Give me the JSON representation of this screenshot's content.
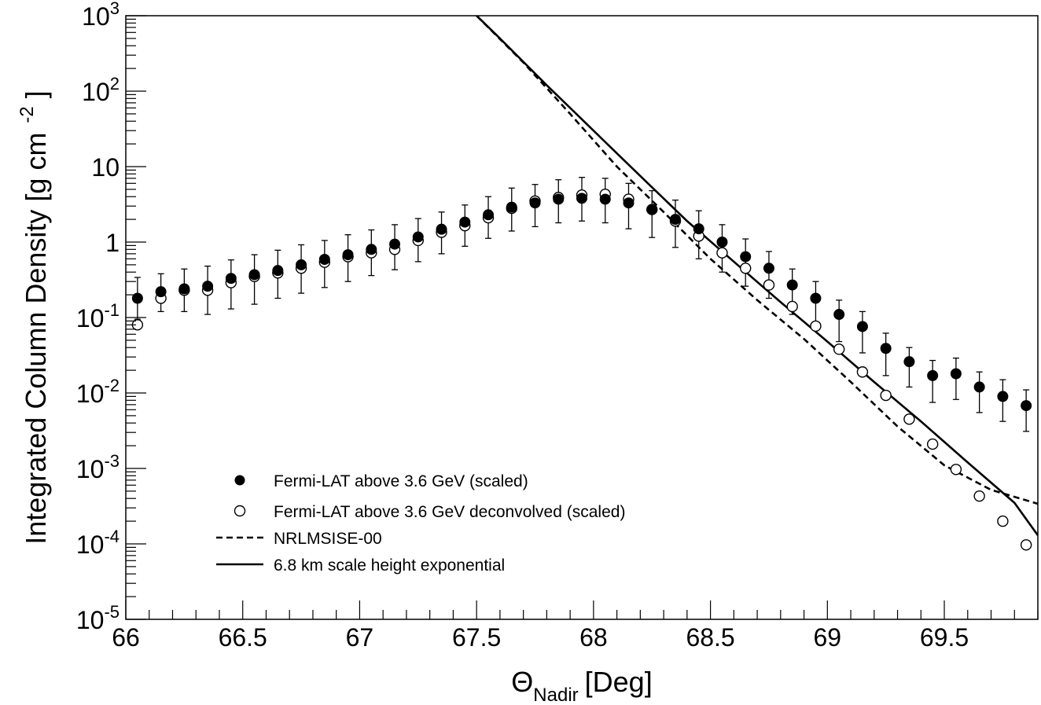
{
  "chart_data": {
    "type": "scatter",
    "title": "",
    "xlabel": "Θ",
    "xlabel_sub": "Nadir",
    "xlabel_unit": "[Deg]",
    "ylabel": "Integrated Column Density [g cm",
    "ylabel_sup": "-2",
    "ylabel_close": "]",
    "xlim": [
      66.0,
      69.9
    ],
    "ylim": [
      1e-05,
      1000
    ],
    "yscale": "log",
    "grid": false,
    "legend_position": "lower-left",
    "x_ticks": [
      66,
      66.5,
      67,
      67.5,
      68,
      68.5,
      69,
      69.5
    ],
    "x_tick_labels": [
      "66",
      "66.5",
      "67",
      "67.5",
      "68",
      "68.5",
      "69",
      "69.5"
    ],
    "y_ticks": [
      {
        "value": 1000,
        "mantissa": "10",
        "exp": "3"
      },
      {
        "value": 100,
        "mantissa": "10",
        "exp": "2"
      },
      {
        "value": 10,
        "mantissa": "10",
        "exp": ""
      },
      {
        "value": 1,
        "mantissa": "1",
        "exp": ""
      },
      {
        "value": 0.1,
        "mantissa": "10",
        "exp": "-1"
      },
      {
        "value": 0.01,
        "mantissa": "10",
        "exp": "-2"
      },
      {
        "value": 0.001,
        "mantissa": "10",
        "exp": "-3"
      },
      {
        "value": 0.0001,
        "mantissa": "10",
        "exp": "-4"
      },
      {
        "value": 1e-05,
        "mantissa": "10",
        "exp": "-5"
      }
    ],
    "series": [
      {
        "name": "Fermi-LAT above 3.6 GeV (scaled)",
        "marker": "filled-circle",
        "x": [
          66.05,
          66.15,
          66.25,
          66.35,
          66.45,
          66.55,
          66.65,
          66.75,
          66.85,
          66.95,
          67.05,
          67.15,
          67.25,
          67.35,
          67.45,
          67.55,
          67.65,
          67.75,
          67.85,
          67.95,
          68.05,
          68.15,
          68.25,
          68.35,
          68.45,
          68.55,
          68.65,
          68.75,
          68.85,
          68.95,
          69.05,
          69.15,
          69.25,
          69.35,
          69.45,
          69.55,
          69.65,
          69.75,
          69.85
        ],
        "y": [
          0.18,
          0.22,
          0.24,
          0.26,
          0.33,
          0.37,
          0.42,
          0.5,
          0.59,
          0.68,
          0.8,
          0.94,
          1.17,
          1.48,
          1.84,
          2.3,
          2.9,
          3.3,
          3.7,
          3.8,
          3.7,
          3.3,
          2.7,
          2.0,
          1.5,
          1.0,
          0.64,
          0.45,
          0.27,
          0.18,
          0.11,
          0.076,
          0.039,
          0.026,
          0.017,
          0.018,
          0.012,
          0.009,
          0.0068
        ],
        "y_low": [
          0.095,
          0.12,
          0.12,
          0.11,
          0.13,
          0.15,
          0.18,
          0.21,
          0.25,
          0.3,
          0.36,
          0.43,
          0.55,
          0.7,
          0.88,
          1.12,
          1.4,
          1.6,
          1.8,
          1.9,
          1.8,
          1.5,
          1.15,
          0.85,
          0.6,
          0.4,
          0.26,
          0.18,
          0.11,
          0.075,
          0.048,
          0.034,
          0.017,
          0.012,
          0.0075,
          0.0082,
          0.0055,
          0.0042,
          0.0031
        ],
        "y_high": [
          0.34,
          0.38,
          0.44,
          0.48,
          0.58,
          0.68,
          0.78,
          0.92,
          1.05,
          1.25,
          1.45,
          1.7,
          2.05,
          2.5,
          3.1,
          4.0,
          5.2,
          5.8,
          6.7,
          7.2,
          7.0,
          6.0,
          4.8,
          3.6,
          2.6,
          1.7,
          1.1,
          0.75,
          0.44,
          0.3,
          0.17,
          0.12,
          0.062,
          0.04,
          0.027,
          0.029,
          0.019,
          0.015,
          0.011
        ]
      },
      {
        "name": "Fermi-LAT above 3.6 GeV deconvolved (scaled)",
        "marker": "open-circle",
        "x": [
          66.05,
          66.15,
          66.25,
          66.35,
          66.45,
          66.55,
          66.65,
          66.75,
          66.85,
          66.95,
          67.05,
          67.15,
          67.25,
          67.35,
          67.45,
          67.55,
          67.65,
          67.75,
          67.85,
          67.95,
          68.05,
          68.15,
          68.25,
          68.35,
          68.45,
          68.55,
          68.65,
          68.75,
          68.85,
          68.95,
          69.05,
          69.15,
          69.25,
          69.35,
          69.45,
          69.55,
          69.65,
          69.75,
          69.85
        ],
        "y": [
          0.08,
          0.18,
          0.23,
          0.23,
          0.29,
          0.35,
          0.39,
          0.45,
          0.54,
          0.64,
          0.72,
          0.8,
          1.05,
          1.35,
          1.65,
          2.1,
          2.8,
          3.5,
          3.9,
          4.2,
          4.3,
          3.7,
          2.7,
          1.9,
          1.2,
          0.72,
          0.45,
          0.27,
          0.14,
          0.077,
          0.038,
          0.019,
          0.0093,
          0.0045,
          0.0021,
          0.00097,
          0.00043,
          0.0002,
          9.7e-05
        ],
        "y_low": [],
        "y_high": []
      },
      {
        "name": "NRLMSISE-00",
        "line": "dashed",
        "x": [
          67.5,
          67.7,
          67.9,
          68.1,
          68.3,
          68.5,
          68.7,
          68.9,
          69.1,
          69.3,
          69.5,
          69.7,
          69.9
        ],
        "y": [
          1000,
          240,
          50,
          10,
          2.5,
          0.6,
          0.17,
          0.052,
          0.014,
          0.0036,
          0.0011,
          0.00052,
          0.00034
        ]
      },
      {
        "name": "6.8 km scale height exponential",
        "line": "solid",
        "x": [
          67.5,
          67.6,
          67.8,
          68.0,
          68.2,
          68.4,
          68.6,
          68.8,
          69.0,
          69.2,
          69.4,
          69.6,
          69.8,
          69.9
        ],
        "y": [
          1000,
          500,
          120,
          30,
          7.5,
          1.9,
          0.55,
          0.16,
          0.048,
          0.014,
          0.0042,
          0.0012,
          0.00035,
          0.00013
        ]
      }
    ]
  }
}
